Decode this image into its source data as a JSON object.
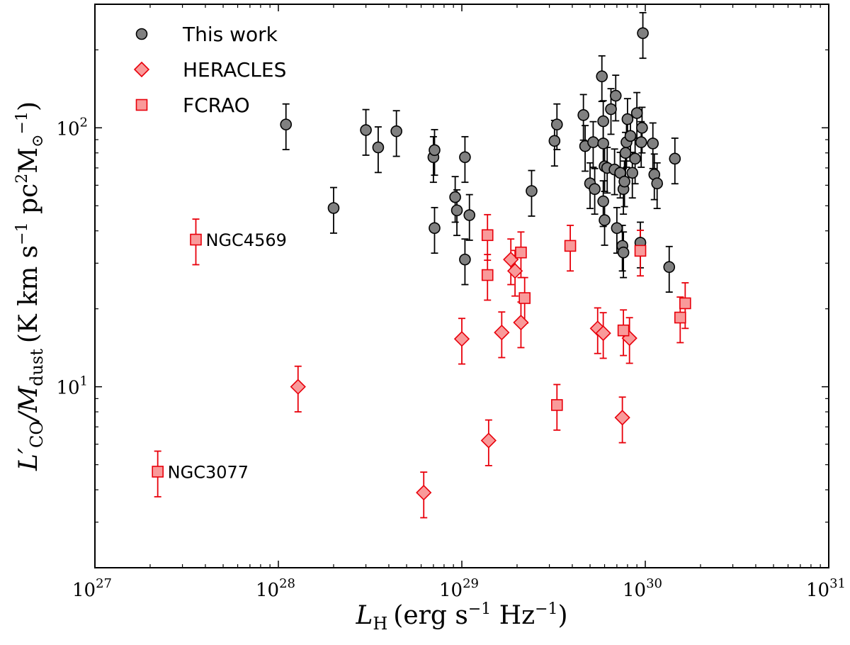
{
  "chart_data": {
    "type": "scatter",
    "title": "",
    "x_scale": "log",
    "y_scale": "log",
    "xlim": [
      1e+27,
      1e+31
    ],
    "ylim": [
      2,
      300
    ],
    "grid": false,
    "legend_position": "top-left",
    "xlabel": {
      "main": "L",
      "sub": "H",
      "unit_pre": "(erg s",
      "unit_exp": "−1",
      "unit_post": " Hz",
      "unit_exp2": "−1",
      "unit_close": ")"
    },
    "ylabel": {
      "main": "L′",
      "sub": "CO",
      "sep": "/M",
      "sub2": "dust",
      "unit_pre": "(K km s",
      "unit_exp": "−1",
      "unit_mid": " pc",
      "unit_exp2": "2",
      "unit_post": "M",
      "unit_sub": "⊙",
      "unit_exp3": "−1",
      "unit_close": ")"
    },
    "x_ticks": [
      {
        "base": "10",
        "exp": "27",
        "value": 1e+27
      },
      {
        "base": "10",
        "exp": "28",
        "value": 1e+28
      },
      {
        "base": "10",
        "exp": "29",
        "value": 1e+29
      },
      {
        "base": "10",
        "exp": "30",
        "value": 1e+30
      },
      {
        "base": "10",
        "exp": "31",
        "value": 1e+31
      }
    ],
    "y_ticks": [
      {
        "base": "10",
        "exp": "1",
        "value": 10
      },
      {
        "base": "10",
        "exp": "2",
        "value": 100
      }
    ],
    "colors": {
      "this_work_fill": "#808080",
      "this_work_edge": "#000000",
      "red_fill": "#f99a9a",
      "red_edge": "#e8000b",
      "error_black": "#000000",
      "error_red": "#e8000b"
    },
    "series": [
      {
        "name": "This work",
        "marker": "circle",
        "points": [
          [
            1.1e+28,
            103
          ],
          [
            2e+28,
            49
          ],
          [
            3e+28,
            98
          ],
          [
            3.5e+28,
            84
          ],
          [
            4.4e+28,
            97
          ],
          [
            7e+28,
            77
          ],
          [
            7.1e+28,
            82
          ],
          [
            7.1e+28,
            41
          ],
          [
            9.2e+28,
            54
          ],
          [
            9.4e+28,
            48
          ],
          [
            1.04e+29,
            77
          ],
          [
            1.04e+29,
            31
          ],
          [
            1.1e+29,
            46
          ],
          [
            2.4e+29,
            57
          ],
          [
            3.2e+29,
            89
          ],
          [
            3.3e+29,
            103
          ],
          [
            4.6e+29,
            112
          ],
          [
            4.7e+29,
            85
          ],
          [
            5e+29,
            61
          ],
          [
            5.2e+29,
            88
          ],
          [
            5.3e+29,
            58
          ],
          [
            5.8e+29,
            158
          ],
          [
            5.9e+29,
            87
          ],
          [
            5.9e+29,
            106
          ],
          [
            5.9e+29,
            52
          ],
          [
            6e+29,
            71
          ],
          [
            6e+29,
            44
          ],
          [
            6.2e+29,
            70
          ],
          [
            6.5e+29,
            118
          ],
          [
            6.8e+29,
            69
          ],
          [
            6.9e+29,
            133
          ],
          [
            7e+29,
            41
          ],
          [
            7.3e+29,
            67
          ],
          [
            7.5e+29,
            35
          ],
          [
            7.6e+29,
            33
          ],
          [
            7.6e+29,
            58
          ],
          [
            7.7e+29,
            62
          ],
          [
            7.8e+29,
            80
          ],
          [
            7.9e+29,
            88
          ],
          [
            8e+29,
            108
          ],
          [
            8.3e+29,
            93
          ],
          [
            8.5e+29,
            67
          ],
          [
            8.8e+29,
            76
          ],
          [
            9e+29,
            114
          ],
          [
            9.4e+29,
            36
          ],
          [
            9.5e+29,
            88
          ],
          [
            9.6e+29,
            100
          ],
          [
            9.7e+29,
            232
          ],
          [
            1.1e+30,
            87
          ],
          [
            1.12e+30,
            66
          ],
          [
            1.16e+30,
            61
          ],
          [
            1.35e+30,
            29
          ],
          [
            1.45e+30,
            76
          ]
        ]
      },
      {
        "name": "HERACLES",
        "marker": "diamond",
        "points": [
          [
            1.28e+28,
            10
          ],
          [
            6.2e+28,
            3.9
          ],
          [
            1e+29,
            15.3
          ],
          [
            1.4e+29,
            6.2
          ],
          [
            1.65e+29,
            16.2
          ],
          [
            1.85e+29,
            31
          ],
          [
            1.95e+29,
            28
          ],
          [
            2.1e+29,
            17.7
          ],
          [
            5.5e+29,
            16.8
          ],
          [
            5.9e+29,
            16.1
          ],
          [
            7.5e+29,
            7.6
          ],
          [
            8.2e+29,
            15.4
          ]
        ]
      },
      {
        "name": "FCRAO",
        "marker": "square",
        "points": [
          [
            2.2e+27,
            4.7
          ],
          [
            3.55e+27,
            37
          ],
          [
            1.38e+29,
            38.5
          ],
          [
            1.38e+29,
            27
          ],
          [
            2.1e+29,
            33
          ],
          [
            2.2e+29,
            22
          ],
          [
            3.3e+29,
            8.5
          ],
          [
            3.9e+29,
            35
          ],
          [
            7.6e+29,
            16.5
          ],
          [
            9.4e+29,
            33.5
          ],
          [
            1.55e+30,
            18.5
          ],
          [
            1.65e+30,
            21
          ]
        ]
      }
    ],
    "annotations": [
      {
        "text": "NGC4569",
        "x": 3.55e+27,
        "y": 37
      },
      {
        "text": "NGC3077",
        "x": 2.2e+27,
        "y": 4.7
      }
    ]
  }
}
